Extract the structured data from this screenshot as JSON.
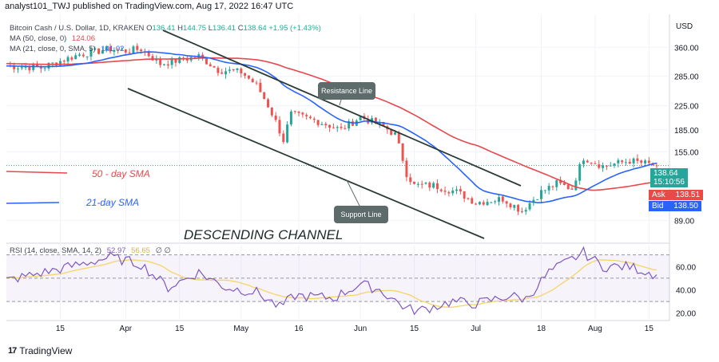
{
  "header": {
    "publisher": "analyst101_TWJ published on TradingView.com, Aug 17, 2022 16:47 UTC"
  },
  "legend": {
    "symbol": "Bitcoin Cash / U.S. Dollar, 1D, KRAKEN",
    "o_label": "O",
    "o": "136.41",
    "h_label": "H",
    "h": "144.75",
    "l_label": "L",
    "l": "136.41",
    "c_label": "C",
    "c": "138.64",
    "change": "+1.95 (+1.43%)",
    "ma50_label": "MA (50, close, 0)",
    "ma50_value": "124.06",
    "ma21_label": "MA (21, close, 0, SMA, 5)",
    "ma21_value": "141.02",
    "rsi_label": "RSI (14, close, SMA, 14, 2)",
    "rsi_value": "52.97",
    "rsi_sma_value": "56.65",
    "rsi_extra": "∅ ∅"
  },
  "price_tags": {
    "last": "138.64",
    "countdown": "15:10:56",
    "ask_label": "Ask",
    "ask": "138.51",
    "bid_label": "Bid",
    "bid": "138.50"
  },
  "annotations": {
    "resistance": "Resistance Line",
    "support": "Support Line",
    "sma50": "50 - day SMA",
    "sma21": "21-day SMA",
    "title": "DESCENDING CHANNEL"
  },
  "footer": {
    "brand": "TradingView",
    "logo": "17"
  },
  "colors": {
    "up": "#26a69a",
    "down": "#ef5350",
    "ma50": "#e8474c",
    "ma21": "#2962ff",
    "channel": "#2a3b35",
    "rsi": "#7e57c2",
    "rsi_sma": "#f5d76e",
    "tag_green": "#26a69a",
    "tag_red": "#e84a4a",
    "tag_blue": "#2962ff",
    "annotation_bg": "#5d6b6b"
  },
  "chart_data": {
    "type": "candlestick",
    "title": "Bitcoin Cash / U.S. Dollar, 1D, KRAKEN",
    "price_axis_unit": "USD",
    "price_scale": "log",
    "price_ticks": [
      "360.00",
      "285.00",
      "225.00",
      "185.00",
      "155.00",
      "89.00"
    ],
    "price_tick_values": [
      360,
      285,
      225,
      185,
      155,
      89
    ],
    "x_tick_labels": [
      "15",
      "Apr",
      "15",
      "May",
      "16",
      "Jun",
      "15",
      "Jul",
      "18",
      "Aug",
      "15"
    ],
    "x_tick_dates": [
      "2022-03-15",
      "2022-04-01",
      "2022-04-15",
      "2022-05-01",
      "2022-05-16",
      "2022-06-01",
      "2022-06-15",
      "2022-07-01",
      "2022-07-18",
      "2022-08-01",
      "2022-08-15"
    ],
    "date_start": "2022-03-01",
    "date_end": "2022-08-17",
    "y_range": [
      75,
      470
    ],
    "close_anchors": [
      [
        "2022-03-01",
        310
      ],
      [
        "2022-03-10",
        305
      ],
      [
        "2022-03-20",
        340
      ],
      [
        "2022-03-28",
        355
      ],
      [
        "2022-04-01",
        350
      ],
      [
        "2022-04-05",
        355
      ],
      [
        "2022-04-10",
        315
      ],
      [
        "2022-04-15",
        325
      ],
      [
        "2022-04-20",
        335
      ],
      [
        "2022-04-25",
        300
      ],
      [
        "2022-05-01",
        295
      ],
      [
        "2022-05-05",
        265
      ],
      [
        "2022-05-08",
        225
      ],
      [
        "2022-05-12",
        170
      ],
      [
        "2022-05-14",
        210
      ],
      [
        "2022-05-20",
        200
      ],
      [
        "2022-05-27",
        185
      ],
      [
        "2022-06-01",
        205
      ],
      [
        "2022-06-07",
        190
      ],
      [
        "2022-06-10",
        178
      ],
      [
        "2022-06-13",
        130
      ],
      [
        "2022-06-15",
        118
      ],
      [
        "2022-06-20",
        118
      ],
      [
        "2022-06-26",
        112
      ],
      [
        "2022-07-01",
        103
      ],
      [
        "2022-07-08",
        106
      ],
      [
        "2022-07-13",
        96
      ],
      [
        "2022-07-18",
        112
      ],
      [
        "2022-07-22",
        120
      ],
      [
        "2022-07-26",
        115
      ],
      [
        "2022-07-29",
        148
      ],
      [
        "2022-08-03",
        138
      ],
      [
        "2022-08-10",
        144
      ],
      [
        "2022-08-17",
        138.64
      ]
    ],
    "series": [
      {
        "name": "MA (50, close, 0)",
        "last": 124.06
      },
      {
        "name": "MA (21, close, 0, SMA, 5)",
        "last": 141.02
      },
      {
        "name": "RSI (14, close, SMA, 14, 2)",
        "last": 52.97
      },
      {
        "name": "RSI SMA",
        "last": 56.65
      }
    ],
    "rsi_ticks": [
      "60.00",
      "40.00",
      "20.00"
    ],
    "rsi_tick_values": [
      60,
      40,
      20
    ],
    "rsi_range": [
      15,
      78
    ],
    "rsi_bands": [
      70,
      50,
      30
    ],
    "rsi_anchors": [
      [
        "2022-03-01",
        48
      ],
      [
        "2022-03-15",
        58
      ],
      [
        "2022-03-28",
        68
      ],
      [
        "2022-04-05",
        62
      ],
      [
        "2022-04-12",
        42
      ],
      [
        "2022-04-20",
        55
      ],
      [
        "2022-04-27",
        42
      ],
      [
        "2022-05-05",
        38
      ],
      [
        "2022-05-11",
        25
      ],
      [
        "2022-05-15",
        35
      ],
      [
        "2022-05-25",
        33
      ],
      [
        "2022-06-01",
        45
      ],
      [
        "2022-06-06",
        40
      ],
      [
        "2022-06-13",
        24
      ],
      [
        "2022-06-16",
        22
      ],
      [
        "2022-06-25",
        30
      ],
      [
        "2022-07-01",
        28
      ],
      [
        "2022-07-10",
        35
      ],
      [
        "2022-07-14",
        32
      ],
      [
        "2022-07-20",
        55
      ],
      [
        "2022-07-29",
        72
      ],
      [
        "2022-08-03",
        60
      ],
      [
        "2022-08-10",
        60
      ],
      [
        "2022-08-17",
        52.97
      ]
    ]
  }
}
